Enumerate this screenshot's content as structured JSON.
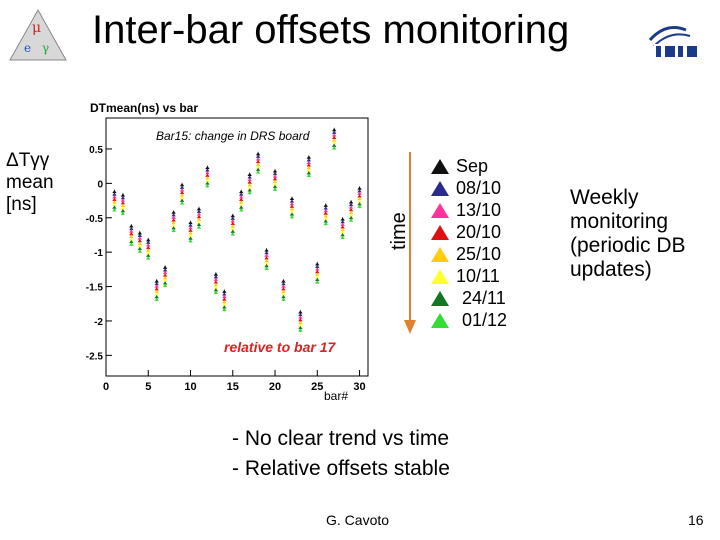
{
  "slide": {
    "title": "Inter-bar offsets monitoring",
    "y_side_label": [
      "ΔTγγ",
      "mean",
      "[ns]"
    ],
    "time_label": "time",
    "weekly_note": [
      "Weekly",
      "monitoring",
      "(periodic DB",
      "updates)"
    ],
    "bullets": [
      "- No clear trend vs time",
      "-  Relative offsets stable"
    ],
    "author": "G. Cavoto",
    "page_number": "16"
  },
  "legend": [
    {
      "label": "Sep",
      "color": "#111111"
    },
    {
      "label": "08/10",
      "color": "#2b2b8f"
    },
    {
      "label": "13/10",
      "color": "#ff3399"
    },
    {
      "label": "20/10",
      "color": "#dd1111"
    },
    {
      "label": "25/10",
      "color": "#ffcc11"
    },
    {
      "label": "10/11",
      "color": "#ffff33"
    },
    {
      "label": "24/11",
      "color": "#117722"
    },
    {
      "label": "01/12",
      "color": "#33dd33"
    }
  ],
  "chart_data": {
    "type": "scatter",
    "title": "DTmean(ns) vs bar",
    "xlabel": "bar#",
    "ylabel": "",
    "xlim": [
      0,
      31
    ],
    "ylim": [
      -2.8,
      0.95
    ],
    "xticks": [
      0,
      5,
      10,
      15,
      20,
      25,
      30
    ],
    "yticks": [
      0.5,
      0,
      -0.5,
      -1,
      -1.5,
      -2,
      -2.5
    ],
    "annotations": [
      "Bar15: change in DRS board",
      "relative to bar 17"
    ],
    "bars": [
      {
        "x": 1,
        "y": -0.25
      },
      {
        "x": 2,
        "y": -0.3
      },
      {
        "x": 3,
        "y": -0.75
      },
      {
        "x": 4,
        "y": -0.85
      },
      {
        "x": 5,
        "y": -0.95
      },
      {
        "x": 6,
        "y": -1.55
      },
      {
        "x": 7,
        "y": -1.35
      },
      {
        "x": 8,
        "y": -0.55
      },
      {
        "x": 9,
        "y": -0.15
      },
      {
        "x": 10,
        "y": -0.7
      },
      {
        "x": 11,
        "y": -0.5
      },
      {
        "x": 12,
        "y": 0.1
      },
      {
        "x": 13,
        "y": -1.45
      },
      {
        "x": 14,
        "y": -1.7
      },
      {
        "x": 15,
        "y": -0.6
      },
      {
        "x": 16,
        "y": -0.25
      },
      {
        "x": 17,
        "y": 0.0
      },
      {
        "x": 18,
        "y": 0.3
      },
      {
        "x": 19,
        "y": -1.1
      },
      {
        "x": 20,
        "y": 0.05
      },
      {
        "x": 21,
        "y": -1.55
      },
      {
        "x": 22,
        "y": -0.35
      },
      {
        "x": 23,
        "y": -2.0
      },
      {
        "x": 24,
        "y": 0.25
      },
      {
        "x": 25,
        "y": -1.3
      },
      {
        "x": 26,
        "y": -0.45
      },
      {
        "x": 27,
        "y": 0.65
      },
      {
        "x": 28,
        "y": -0.65
      },
      {
        "x": 29,
        "y": -0.4
      },
      {
        "x": 30,
        "y": -0.2
      }
    ]
  }
}
